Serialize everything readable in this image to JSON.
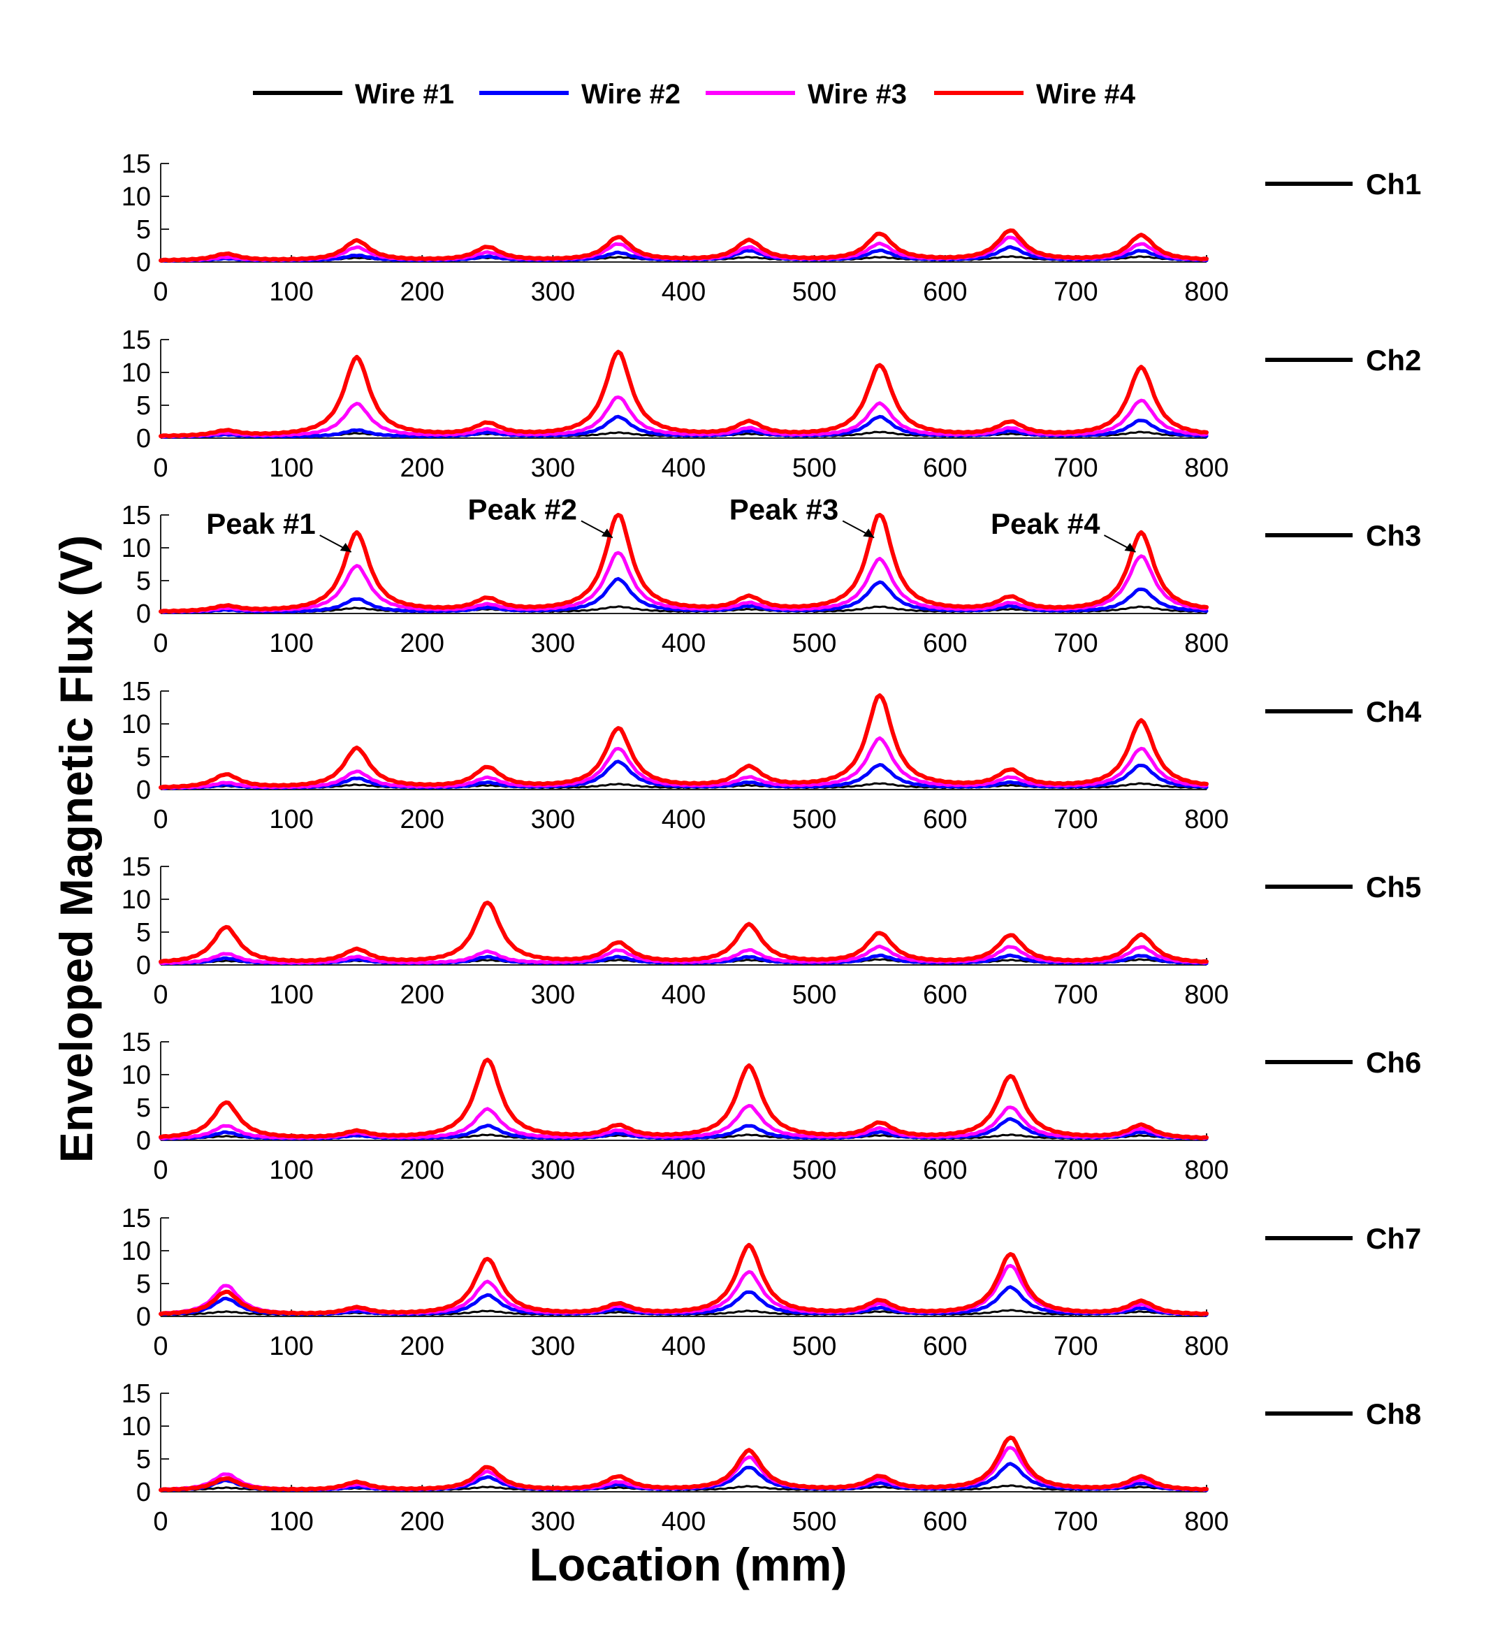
{
  "chart_data": {
    "type": "line",
    "title": "",
    "xlabel": "Location (mm)",
    "ylabel": "Enveloped Magnetic Flux (V)",
    "xlim": [
      0,
      800
    ],
    "ylim": [
      0,
      15
    ],
    "xticks": [
      "0",
      "100",
      "200",
      "300",
      "400",
      "500",
      "600",
      "700",
      "800"
    ],
    "yticks": [
      "0",
      "5",
      "10",
      "15"
    ],
    "legend": [
      {
        "name": "Wire #1",
        "color": "#000000"
      },
      {
        "name": "Wire #2",
        "color": "#0000ff"
      },
      {
        "name": "Wire #3",
        "color": "#ff00ff"
      },
      {
        "name": "Wire #4",
        "color": "#ff0000"
      }
    ],
    "legend_position": "top",
    "peak_locations": [
      50,
      150,
      250,
      350,
      450,
      550,
      650,
      750
    ],
    "panels": [
      {
        "name": "Ch1",
        "series": [
          {
            "name": "Wire #1",
            "peaks": [
              0.3,
              0.4,
              0.4,
              0.5,
              0.5,
              0.5,
              0.6,
              0.6
            ]
          },
          {
            "name": "Wire #2",
            "peaks": [
              0.3,
              0.8,
              0.6,
              1.2,
              1.5,
              1.5,
              2.0,
              1.5
            ]
          },
          {
            "name": "Wire #3",
            "peaks": [
              0.5,
              2.0,
              1.2,
              2.5,
              2.0,
              2.5,
              3.5,
              2.5
            ]
          },
          {
            "name": "Wire #4",
            "peaks": [
              1.0,
              3.0,
              2.0,
              3.5,
              3.0,
              4.0,
              4.5,
              3.8
            ]
          }
        ]
      },
      {
        "name": "Ch2",
        "series": [
          {
            "name": "Wire #1",
            "peaks": [
              0.3,
              0.5,
              0.4,
              0.6,
              0.4,
              0.7,
              0.4,
              0.7
            ]
          },
          {
            "name": "Wire #2",
            "peaks": [
              0.3,
              1.0,
              0.6,
              3.0,
              0.8,
              3.0,
              0.8,
              2.5
            ]
          },
          {
            "name": "Wire #3",
            "peaks": [
              0.5,
              5.0,
              1.0,
              6.0,
              1.2,
              5.0,
              1.2,
              5.5
            ]
          },
          {
            "name": "Wire #4",
            "peaks": [
              0.8,
              12.0,
              1.8,
              12.8,
              2.0,
              10.8,
              2.0,
              10.5
            ]
          }
        ]
      },
      {
        "name": "Ch3",
        "series": [
          {
            "name": "Wire #1",
            "peaks": [
              0.3,
              0.6,
              0.4,
              0.8,
              0.4,
              0.8,
              0.4,
              0.8
            ]
          },
          {
            "name": "Wire #2",
            "peaks": [
              0.3,
              2.0,
              0.6,
              5.0,
              0.8,
              4.5,
              0.8,
              3.5
            ]
          },
          {
            "name": "Wire #3",
            "peaks": [
              0.5,
              7.0,
              1.0,
              9.0,
              1.2,
              8.0,
              1.2,
              8.5
            ]
          },
          {
            "name": "Wire #4",
            "peaks": [
              0.8,
              12.0,
              1.8,
              14.8,
              2.0,
              14.8,
              2.0,
              12.0
            ]
          }
        ]
      },
      {
        "name": "Ch4",
        "series": [
          {
            "name": "Wire #1",
            "peaks": [
              0.3,
              0.5,
              0.4,
              0.6,
              0.4,
              0.7,
              0.4,
              0.7
            ]
          },
          {
            "name": "Wire #2",
            "peaks": [
              0.5,
              1.5,
              0.8,
              4.0,
              0.8,
              3.5,
              0.8,
              3.5
            ]
          },
          {
            "name": "Wire #3",
            "peaks": [
              0.8,
              2.5,
              1.5,
              6.0,
              1.5,
              7.5,
              1.5,
              6.0
            ]
          },
          {
            "name": "Wire #4",
            "peaks": [
              2.0,
              6.0,
              3.0,
              9.0,
              3.0,
              14.0,
              2.5,
              10.2
            ]
          }
        ]
      },
      {
        "name": "Ch5",
        "series": [
          {
            "name": "Wire #1",
            "peaks": [
              0.4,
              0.4,
              0.5,
              0.5,
              0.5,
              0.6,
              0.5,
              0.6
            ]
          },
          {
            "name": "Wire #2",
            "peaks": [
              0.8,
              0.6,
              1.0,
              1.0,
              1.0,
              1.2,
              1.2,
              1.2
            ]
          },
          {
            "name": "Wire #3",
            "peaks": [
              1.5,
              1.0,
              1.8,
              2.0,
              2.0,
              2.5,
              2.5,
              2.5
            ]
          },
          {
            "name": "Wire #4",
            "peaks": [
              5.5,
              2.0,
              9.2,
              3.0,
              5.8,
              4.5,
              4.2,
              4.3
            ]
          }
        ]
      },
      {
        "name": "Ch6",
        "series": [
          {
            "name": "Wire #1",
            "peaks": [
              0.4,
              0.4,
              0.6,
              0.5,
              0.6,
              0.5,
              0.6,
              0.5
            ]
          },
          {
            "name": "Wire #2",
            "peaks": [
              1.0,
              0.5,
              2.0,
              0.8,
              2.0,
              1.0,
              3.0,
              1.0
            ]
          },
          {
            "name": "Wire #3",
            "peaks": [
              2.0,
              0.8,
              4.5,
              1.2,
              5.0,
              1.5,
              4.8,
              1.5
            ]
          },
          {
            "name": "Wire #4",
            "peaks": [
              5.5,
              1.0,
              12.0,
              1.8,
              11.0,
              2.2,
              9.5,
              2.0
            ]
          }
        ]
      },
      {
        "name": "Ch7",
        "series": [
          {
            "name": "Wire #1",
            "peaks": [
              0.5,
              0.3,
              0.6,
              0.4,
              0.6,
              0.5,
              0.7,
              0.5
            ]
          },
          {
            "name": "Wire #2",
            "peaks": [
              2.5,
              0.5,
              3.0,
              0.8,
              3.5,
              1.0,
              4.2,
              1.0
            ]
          },
          {
            "name": "Wire #3",
            "peaks": [
              4.5,
              0.8,
              5.0,
              1.2,
              6.5,
              1.5,
              7.5,
              1.5
            ]
          },
          {
            "name": "Wire #4",
            "peaks": [
              3.5,
              1.0,
              8.5,
              1.5,
              10.5,
              2.0,
              9.2,
              2.0
            ]
          }
        ]
      },
      {
        "name": "Ch8",
        "series": [
          {
            "name": "Wire #1",
            "peaks": [
              0.4,
              0.3,
              0.5,
              0.4,
              0.6,
              0.5,
              0.7,
              0.5
            ]
          },
          {
            "name": "Wire #2",
            "peaks": [
              1.5,
              0.5,
              2.0,
              0.8,
              3.5,
              1.0,
              4.0,
              1.0
            ]
          },
          {
            "name": "Wire #3",
            "peaks": [
              2.5,
              0.8,
              2.8,
              1.2,
              5.0,
              1.5,
              6.5,
              1.5
            ]
          },
          {
            "name": "Wire #4",
            "peaks": [
              1.8,
              1.2,
              3.5,
              2.0,
              6.0,
              2.0,
              8.0,
              2.0
            ]
          }
        ]
      }
    ],
    "annotations": [
      {
        "panel": "Ch3",
        "text": "Peak #1",
        "x": 150,
        "y": 12
      },
      {
        "panel": "Ch3",
        "text": "Peak #2",
        "x": 350,
        "y": 14.8
      },
      {
        "panel": "Ch3",
        "text": "Peak #3",
        "x": 550,
        "y": 14.8
      },
      {
        "panel": "Ch3",
        "text": "Peak #4",
        "x": 750,
        "y": 12
      }
    ]
  }
}
